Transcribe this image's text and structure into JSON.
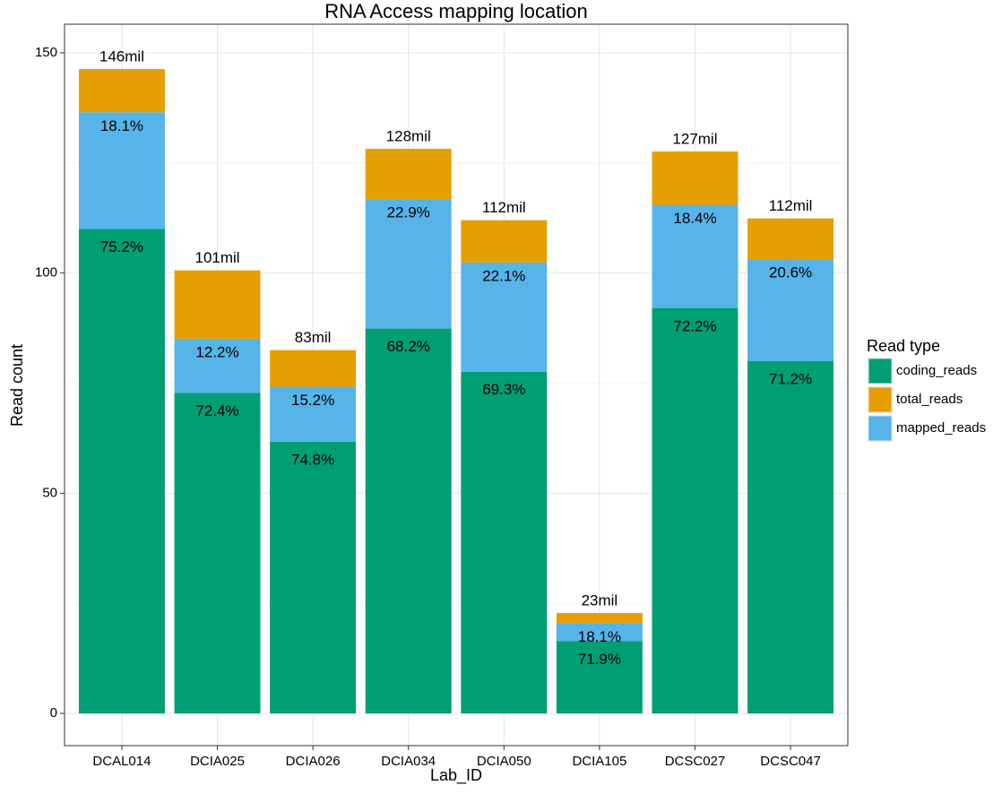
{
  "chart_data": {
    "type": "stacked_bar",
    "title": "RNA Access mapping location",
    "x_label": "Lab_ID",
    "y_label": "Read count",
    "legend_title": "Read type",
    "categories": [
      "DCAL014",
      "DCIA025",
      "DCIA026",
      "DCIA034",
      "DCIA050",
      "DCIA105",
      "DCSC027",
      "DCSC047"
    ],
    "series": [
      {
        "name": "coding_reads",
        "color": "#009E73",
        "values": [
          110.0,
          72.8,
          61.7,
          87.4,
          77.6,
          16.4,
          92.0,
          80.0
        ],
        "bar_labels": [
          "75.2%",
          "72.4%",
          "74.8%",
          "68.2%",
          "69.3%",
          "71.9%",
          "72.2%",
          "71.2%"
        ]
      },
      {
        "name": "total_reads",
        "color": "#E69F00",
        "values": [
          9.8,
          15.5,
          8.3,
          11.4,
          9.6,
          2.3,
          12.1,
          9.2
        ],
        "bar_labels": [
          "146mil",
          "101mil",
          "83mil",
          "128mil",
          "112mil",
          "23mil",
          "127mil",
          "112mil"
        ]
      },
      {
        "name": "mapped_reads",
        "color": "#56B4E9",
        "values": [
          26.5,
          12.3,
          12.5,
          29.4,
          24.8,
          4.1,
          23.5,
          23.2
        ],
        "bar_labels": [
          "18.1%",
          "12.2%",
          "15.2%",
          "22.9%",
          "22.1%",
          "18.1%",
          "18.4%",
          "20.6%"
        ]
      }
    ],
    "ylim": [
      -7.3,
      156.5
    ],
    "yticks": [
      0,
      50,
      100,
      150
    ],
    "grid": true,
    "legend": "right"
  }
}
